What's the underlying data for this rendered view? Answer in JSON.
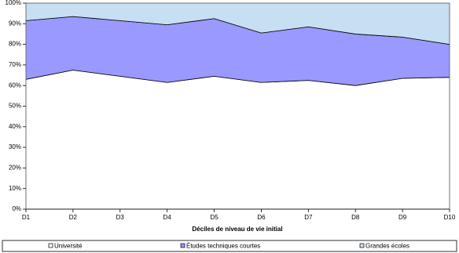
{
  "chart_data": {
    "type": "area",
    "stacked": true,
    "x_label": "Déciles de niveau de vie initial",
    "categories": [
      "D1",
      "D2",
      "D3",
      "D4",
      "D5",
      "D6",
      "D7",
      "D8",
      "D9",
      "D10"
    ],
    "series": [
      {
        "name": "Université",
        "color": "#ffffff",
        "values": [
          63,
          67.5,
          64.5,
          61.5,
          64.5,
          61.5,
          62.5,
          60,
          63.5,
          64
        ]
      },
      {
        "name": "Études techniques courtes",
        "color": "#9999ff",
        "values": [
          28.5,
          26,
          27,
          28,
          28,
          24,
          26,
          25,
          20,
          16
        ]
      },
      {
        "name": "Grandes écoles",
        "color": "#c6dff2",
        "values": [
          8.5,
          6.5,
          8.5,
          10.5,
          7.5,
          14.5,
          11.5,
          15,
          16.5,
          20
        ]
      }
    ],
    "ylim": [
      0,
      100
    ],
    "yticks": [
      {
        "value": 0,
        "label": "0%"
      },
      {
        "value": 10,
        "label": "10%"
      },
      {
        "value": 20,
        "label": "20%"
      },
      {
        "value": 30,
        "label": "30%"
      },
      {
        "value": 40,
        "label": "40%"
      },
      {
        "value": 50,
        "label": "50%"
      },
      {
        "value": 60,
        "label": "60%"
      },
      {
        "value": 70,
        "label": "70%"
      },
      {
        "value": 80,
        "label": "80%"
      },
      {
        "value": 90,
        "label": "90%"
      },
      {
        "value": 100,
        "label": "100%"
      }
    ],
    "legend": "bottom"
  }
}
